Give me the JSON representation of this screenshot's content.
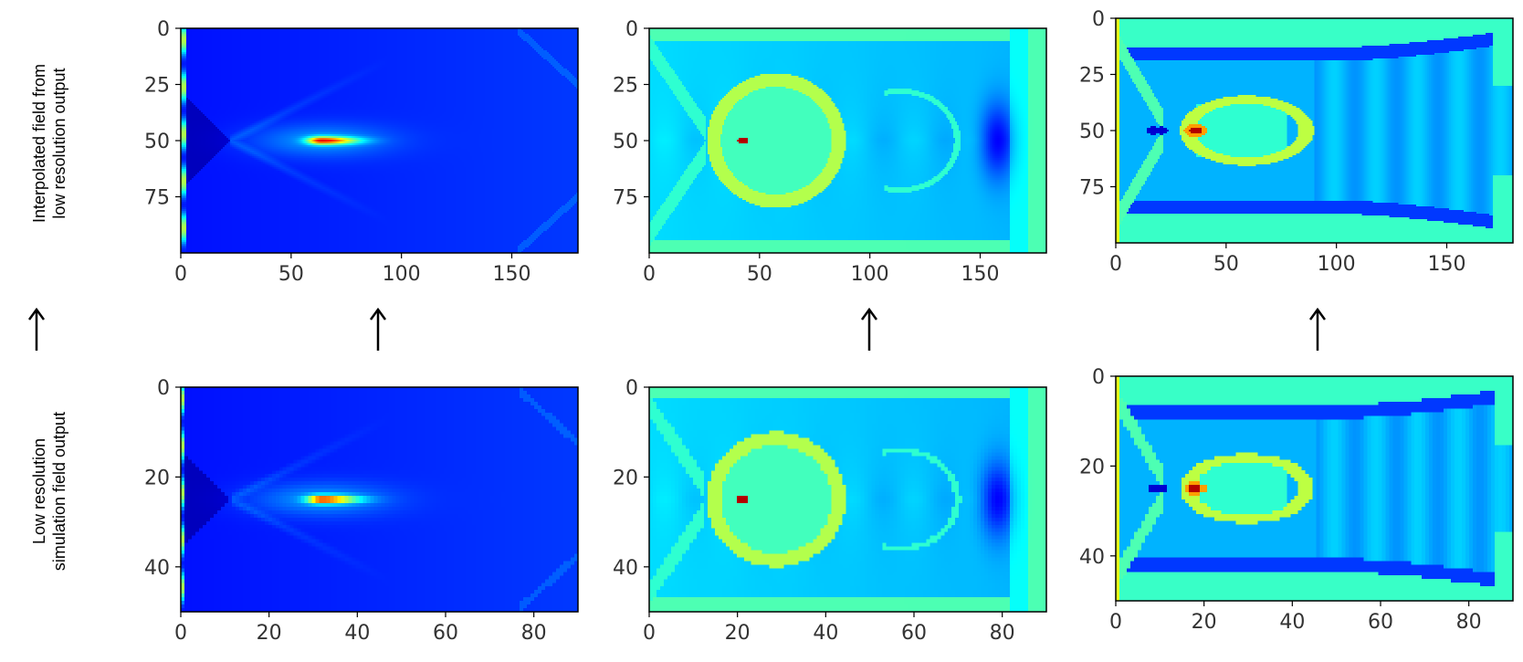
{
  "row_labels": {
    "top": [
      "Interpolated field from",
      "low resolution output"
    ],
    "bottom": [
      "Low resolution",
      "simulation field output"
    ]
  },
  "colormap": "jet",
  "chart_data": [
    {
      "type": "heatmap",
      "row": "top",
      "col": 1,
      "xlim": [
        0,
        180
      ],
      "ylim": [
        0,
        100
      ],
      "xticks": [
        0,
        50,
        100,
        150
      ],
      "yticks": [
        0,
        25,
        50,
        75
      ],
      "field": "A"
    },
    {
      "type": "heatmap",
      "row": "top",
      "col": 2,
      "xlim": [
        0,
        180
      ],
      "ylim": [
        0,
        100
      ],
      "xticks": [
        0,
        50,
        100,
        150
      ],
      "yticks": [
        0,
        25,
        50,
        75
      ],
      "field": "B"
    },
    {
      "type": "heatmap",
      "row": "top",
      "col": 3,
      "xlim": [
        0,
        180
      ],
      "ylim": [
        0,
        100
      ],
      "xticks": [
        0,
        50,
        100,
        150
      ],
      "yticks": [
        0,
        25,
        50,
        75
      ],
      "field": "C"
    },
    {
      "type": "heatmap",
      "row": "bottom",
      "col": 1,
      "xlim": [
        0,
        90
      ],
      "ylim": [
        0,
        50
      ],
      "xticks": [
        0,
        20,
        40,
        60,
        80
      ],
      "yticks": [
        0,
        20,
        40
      ],
      "field": "A"
    },
    {
      "type": "heatmap",
      "row": "bottom",
      "col": 2,
      "xlim": [
        0,
        90
      ],
      "ylim": [
        0,
        50
      ],
      "xticks": [
        0,
        20,
        40,
        60,
        80
      ],
      "yticks": [
        0,
        20,
        40
      ],
      "field": "B"
    },
    {
      "type": "heatmap",
      "row": "bottom",
      "col": 3,
      "xlim": [
        0,
        90
      ],
      "ylim": [
        0,
        50
      ],
      "xticks": [
        0,
        20,
        40,
        60,
        80
      ],
      "yticks": [
        0,
        20,
        40
      ],
      "field": "C"
    }
  ]
}
